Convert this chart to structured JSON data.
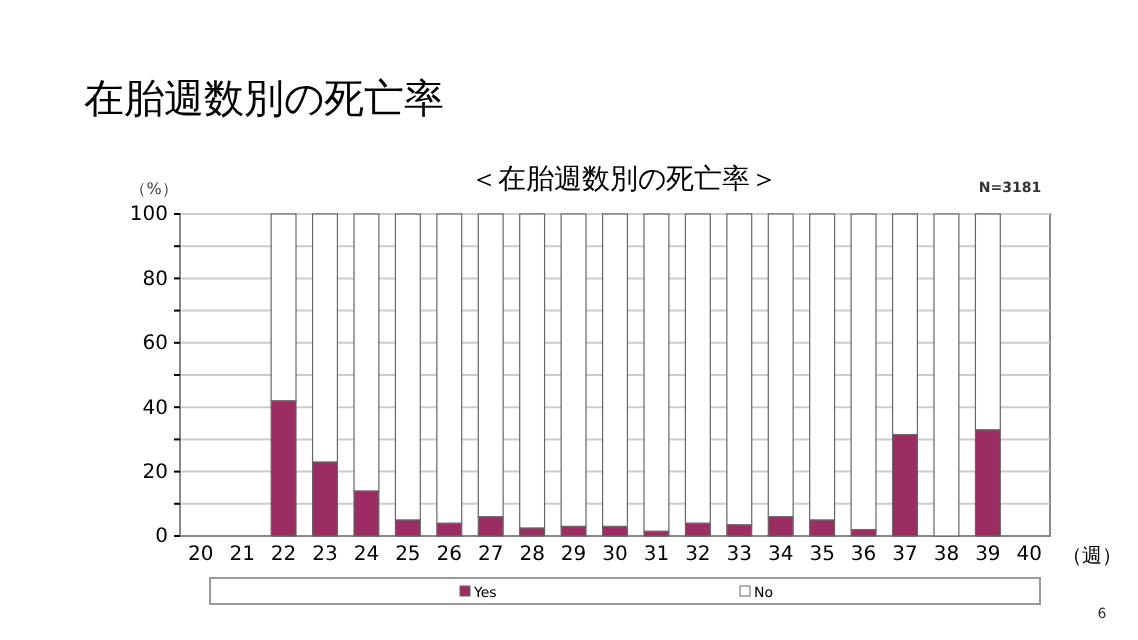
{
  "chart_data": {
    "type": "bar",
    "title": "在胎週数別の死亡率",
    "subtitle": "＜在胎週数別の死亡率＞",
    "xlabel": "（週）",
    "ylabel": "（%）",
    "annotations": [
      "N=3181",
      "6"
    ],
    "categories": [
      "20",
      "21",
      "22",
      "23",
      "24",
      "25",
      "26",
      "27",
      "28",
      "29",
      "30",
      "31",
      "32",
      "33",
      "34",
      "35",
      "36",
      "37",
      "38",
      "39",
      "40"
    ],
    "stacked": true,
    "series": [
      {
        "name": "Yes",
        "color": "#9b2d62",
        "values": [
          null,
          null,
          42,
          23,
          14,
          5,
          4,
          6,
          2.5,
          3,
          3,
          1.5,
          4,
          3.5,
          6,
          5,
          2,
          31.5,
          0,
          33,
          null
        ]
      },
      {
        "name": "No",
        "color": "#ffffff",
        "values": [
          null,
          null,
          58,
          77,
          86,
          95,
          96,
          94,
          97.5,
          97,
          97,
          98.5,
          96,
          96.5,
          94,
          95,
          98,
          68.5,
          100,
          67,
          null
        ]
      }
    ],
    "ylim": [
      0,
      100
    ],
    "yticks": [
      0,
      {
        "value": 10,
        "label": null
      },
      20,
      {
        "value": 30,
        "label": null
      },
      40,
      {
        "value": 50,
        "label": null
      },
      60,
      {
        "value": 70,
        "label": null
      },
      80,
      {
        "value": 90,
        "label": null
      },
      100
    ],
    "grid": "y",
    "legend": "bottom"
  }
}
